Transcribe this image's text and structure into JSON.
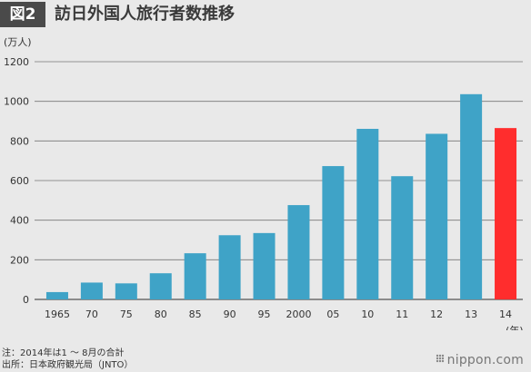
{
  "header": {
    "badge": "図2",
    "title": "訪日外国人旅行者数推移"
  },
  "chart_data": {
    "type": "bar",
    "title": "訪日外国人旅行者数推移",
    "ylabel": "(万人)",
    "xlabel": "(年)",
    "ylim": [
      0,
      1200
    ],
    "yticks": [
      0,
      200,
      400,
      600,
      800,
      1000,
      1200
    ],
    "categories": [
      "1965",
      "70",
      "75",
      "80",
      "85",
      "90",
      "95",
      "2000",
      "05",
      "10",
      "11",
      "12",
      "13",
      "14"
    ],
    "values": [
      37,
      85,
      81,
      132,
      233,
      324,
      335,
      476,
      673,
      861,
      622,
      836,
      1036,
      865
    ],
    "grid": "horizontal",
    "colors": {
      "bar": "#3fa3c7",
      "highlight": "#ff2d2d",
      "highlight_index": 13
    }
  },
  "footnotes": {
    "note": "注：2014年は1 ～ 8月の合計",
    "source": "出所：日本政府観光局（JNTO）"
  },
  "brand": {
    "text": "nippon.com"
  }
}
